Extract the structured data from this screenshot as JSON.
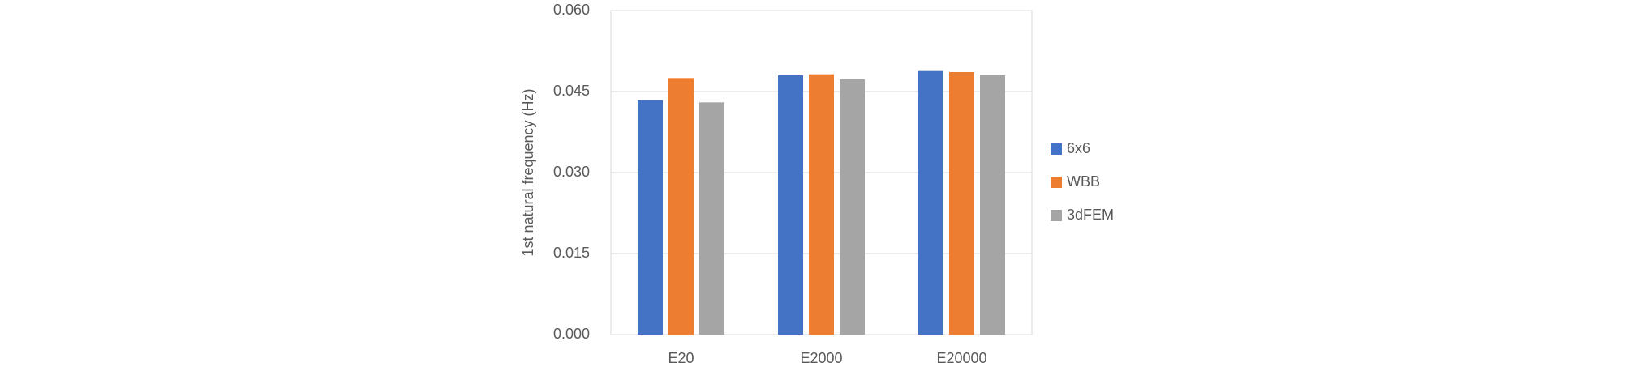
{
  "chart_data": {
    "type": "bar",
    "y_label": "1st natural frequency (Hz)",
    "categories": [
      "E20",
      "E2000",
      "E20000"
    ],
    "series": [
      {
        "name": "6x6",
        "color": "#4472c4",
        "values": [
          0.0434,
          0.048,
          0.0488
        ]
      },
      {
        "name": "WBB",
        "color": "#ed7d31",
        "values": [
          0.0475,
          0.0482,
          0.0486
        ]
      },
      {
        "name": "3dFEM",
        "color": "#a5a5a5",
        "values": [
          0.043,
          0.0473,
          0.048
        ]
      }
    ],
    "ylim": [
      0,
      0.06
    ],
    "yticks": [
      {
        "value": 0,
        "label": "0.000"
      },
      {
        "value": 0.015,
        "label": "0.015"
      },
      {
        "value": 0.03,
        "label": "0.030"
      },
      {
        "value": 0.045,
        "label": "0.045"
      },
      {
        "value": 0.06,
        "label": "0.060"
      }
    ],
    "grid": true,
    "legend": "right"
  }
}
